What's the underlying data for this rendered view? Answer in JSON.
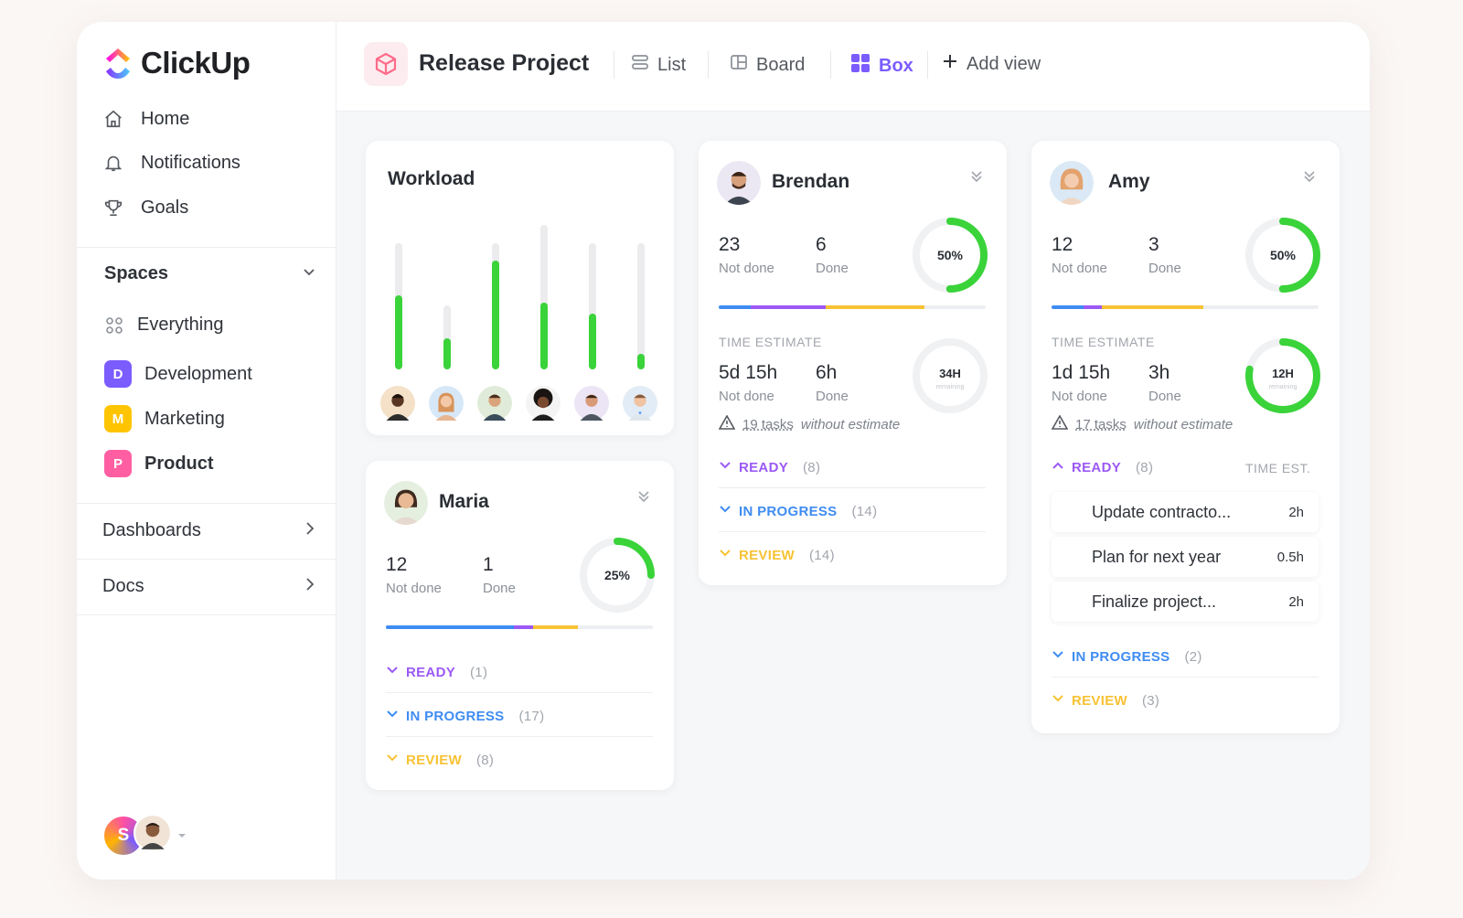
{
  "sidebar": {
    "logo": "ClickUp",
    "nav": [
      {
        "label": "Home",
        "icon": "home-icon"
      },
      {
        "label": "Notifications",
        "icon": "bell-icon"
      },
      {
        "label": "Goals",
        "icon": "trophy-icon"
      }
    ],
    "spaces_label": "Spaces",
    "everything_label": "Everything",
    "spaces": [
      {
        "badge": "D",
        "label": "Development",
        "color": "#7b5cff"
      },
      {
        "badge": "M",
        "label": "Marketing",
        "color": "#ffc400"
      },
      {
        "badge": "P",
        "label": "Product",
        "color": "#ff5fa2"
      }
    ],
    "dashboards_label": "Dashboards",
    "docs_label": "Docs",
    "user_initial": "S"
  },
  "header": {
    "project_title": "Release Project",
    "views": [
      {
        "label": "List",
        "icon": "list-icon",
        "active": false
      },
      {
        "label": "Board",
        "icon": "board-icon",
        "active": false
      },
      {
        "label": "Box",
        "icon": "box-grid-icon",
        "active": true
      }
    ],
    "add_view_label": "Add view"
  },
  "workload": {
    "title": "Workload",
    "bars": [
      0.59,
      0.48,
      0.86,
      0.46,
      0.44,
      0.12
    ]
  },
  "brendan": {
    "name": "Brendan",
    "not_done": "23",
    "not_done_label": "Not done",
    "done": "6",
    "done_label": "Done",
    "ring_label": "50%",
    "ring_fraction": 0.5,
    "time_caption": "TIME ESTIMATE",
    "time_not_done": "5d 15h",
    "time_not_done_label": "Not done",
    "time_done": "6h",
    "time_done_label": "Done",
    "time_ring_label": "34H",
    "time_ring_sub": "remaining",
    "time_ring_fraction": 0.0,
    "warn_count": "19 tasks",
    "warn_rest": "without estimate",
    "statuses": [
      {
        "label": "READY",
        "count": "(8)",
        "color": "#9b59f5"
      },
      {
        "label": "IN PROGRESS",
        "count": "(14)",
        "color": "#3f8cf2"
      },
      {
        "label": "REVIEW",
        "count": "(14)",
        "color": "#f7c234"
      }
    ]
  },
  "amy": {
    "name": "Amy",
    "not_done": "12",
    "not_done_label": "Not done",
    "done": "3",
    "done_label": "Done",
    "ring_label": "50%",
    "ring_fraction": 0.5,
    "time_caption": "TIME ESTIMATE",
    "time_not_done": "1d 15h",
    "time_not_done_label": "Not done",
    "time_done": "3h",
    "time_done_label": "Done",
    "time_ring_label": "12H",
    "time_ring_sub": "remaining",
    "time_ring_fraction": 0.78,
    "warn_count": "17 tasks",
    "warn_rest": "without estimate",
    "ready_label": "READY",
    "ready_count": "(8)",
    "time_est_label": "TIME EST.",
    "tasks": [
      {
        "name": "Update contracto...",
        "est": "2h"
      },
      {
        "name": "Plan for next year",
        "est": "0.5h"
      },
      {
        "name": "Finalize project...",
        "est": "2h"
      }
    ],
    "statuses": [
      {
        "label": "IN PROGRESS",
        "count": "(2)",
        "color": "#3f8cf2"
      },
      {
        "label": "REVIEW",
        "count": "(3)",
        "color": "#f7c234"
      }
    ]
  },
  "maria": {
    "name": "Maria",
    "not_done": "12",
    "not_done_label": "Not done",
    "done": "1",
    "done_label": "Done",
    "ring_label": "25%",
    "ring_fraction": 0.25,
    "statuses": [
      {
        "label": "READY",
        "count": "(1)",
        "color": "#9b59f5"
      },
      {
        "label": "IN PROGRESS",
        "count": "(17)",
        "color": "#3f8cf2"
      },
      {
        "label": "REVIEW",
        "count": "(8)",
        "color": "#f7c234"
      }
    ]
  },
  "colors": {
    "accent": "#7b5cff",
    "green": "#3ad33a",
    "blue": "#3f8cf2",
    "purple": "#9b59f5",
    "yellow": "#f7c234"
  }
}
